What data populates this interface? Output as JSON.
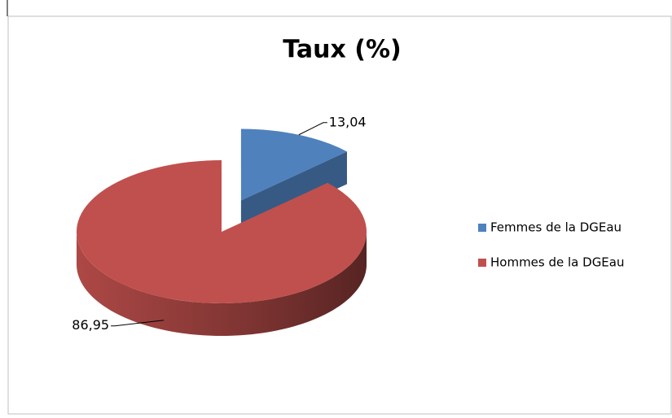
{
  "chart_data": {
    "type": "pie",
    "title": "Taux (%)",
    "categories": [
      "Femmes de la DGEau",
      "Hommes de la DGEau"
    ],
    "values": [
      13.04,
      86.95
    ],
    "value_labels": [
      "13,04",
      "86,95"
    ],
    "colors": [
      "#4f81bd",
      "#c0504d"
    ],
    "legend": "right"
  }
}
